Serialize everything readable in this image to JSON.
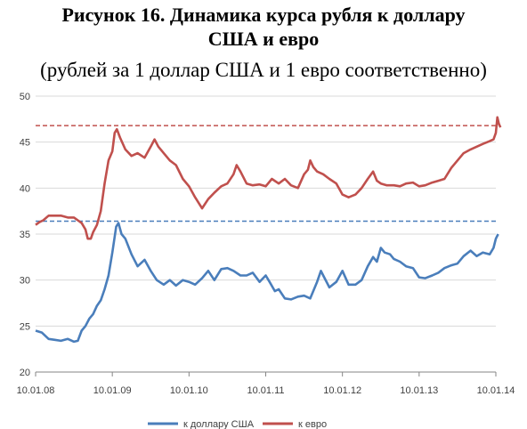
{
  "chart_data": {
    "type": "line",
    "title_line1": "Рисунок 16. Динамика курса рубля к доллару",
    "title_line2": "США и евро",
    "subtitle": "(рублей за 1 доллар США и 1 евро соответственно)",
    "xlabel": "",
    "ylabel": "",
    "ylim": [
      20,
      50
    ],
    "y_ticks": [
      "20",
      "25",
      "30",
      "35",
      "40",
      "45",
      "50"
    ],
    "x_ticks": [
      "10.01.08",
      "10.01.09",
      "10.01.10",
      "10.01.11",
      "10.01.12",
      "10.01.13",
      "10.01.14"
    ],
    "x_unit": "years since 10.01.08",
    "legend_position": "bottom",
    "grid": "horizontal",
    "series": [
      {
        "name": "к доллару США",
        "color": "#4a7ebb",
        "points": [
          [
            0.0,
            24.5
          ],
          [
            0.08,
            24.3
          ],
          [
            0.17,
            23.6
          ],
          [
            0.25,
            23.5
          ],
          [
            0.33,
            23.4
          ],
          [
            0.42,
            23.6
          ],
          [
            0.5,
            23.3
          ],
          [
            0.55,
            23.4
          ],
          [
            0.6,
            24.5
          ],
          [
            0.65,
            25.0
          ],
          [
            0.7,
            25.8
          ],
          [
            0.75,
            26.3
          ],
          [
            0.8,
            27.2
          ],
          [
            0.85,
            27.8
          ],
          [
            0.9,
            29.0
          ],
          [
            0.95,
            30.5
          ],
          [
            1.0,
            33.0
          ],
          [
            1.05,
            35.8
          ],
          [
            1.08,
            36.2
          ],
          [
            1.12,
            35.0
          ],
          [
            1.17,
            34.5
          ],
          [
            1.25,
            32.8
          ],
          [
            1.33,
            31.5
          ],
          [
            1.42,
            32.2
          ],
          [
            1.5,
            31.0
          ],
          [
            1.58,
            30.0
          ],
          [
            1.67,
            29.5
          ],
          [
            1.75,
            30.0
          ],
          [
            1.83,
            29.4
          ],
          [
            1.92,
            30.0
          ],
          [
            2.0,
            29.8
          ],
          [
            2.08,
            29.5
          ],
          [
            2.17,
            30.2
          ],
          [
            2.25,
            31.0
          ],
          [
            2.33,
            30.0
          ],
          [
            2.42,
            31.2
          ],
          [
            2.5,
            31.3
          ],
          [
            2.58,
            31.0
          ],
          [
            2.67,
            30.5
          ],
          [
            2.75,
            30.5
          ],
          [
            2.83,
            30.8
          ],
          [
            2.92,
            29.8
          ],
          [
            3.0,
            30.5
          ],
          [
            3.05,
            29.8
          ],
          [
            3.12,
            28.8
          ],
          [
            3.17,
            29.0
          ],
          [
            3.25,
            28.0
          ],
          [
            3.33,
            27.9
          ],
          [
            3.42,
            28.2
          ],
          [
            3.5,
            28.3
          ],
          [
            3.58,
            28.0
          ],
          [
            3.67,
            29.8
          ],
          [
            3.72,
            31.0
          ],
          [
            3.75,
            30.5
          ],
          [
            3.83,
            29.2
          ],
          [
            3.92,
            29.8
          ],
          [
            4.0,
            31.0
          ],
          [
            4.08,
            29.5
          ],
          [
            4.17,
            29.5
          ],
          [
            4.25,
            30.0
          ],
          [
            4.33,
            31.5
          ],
          [
            4.4,
            32.5
          ],
          [
            4.45,
            32.0
          ],
          [
            4.5,
            33.5
          ],
          [
            4.55,
            33.0
          ],
          [
            4.62,
            32.8
          ],
          [
            4.67,
            32.3
          ],
          [
            4.75,
            32.0
          ],
          [
            4.83,
            31.5
          ],
          [
            4.92,
            31.3
          ],
          [
            5.0,
            30.3
          ],
          [
            5.08,
            30.2
          ],
          [
            5.17,
            30.5
          ],
          [
            5.25,
            30.8
          ],
          [
            5.33,
            31.3
          ],
          [
            5.42,
            31.6
          ],
          [
            5.5,
            31.8
          ],
          [
            5.58,
            32.6
          ],
          [
            5.67,
            33.2
          ],
          [
            5.75,
            32.6
          ],
          [
            5.83,
            33.0
          ],
          [
            5.92,
            32.8
          ],
          [
            5.97,
            33.5
          ],
          [
            6.0,
            34.5
          ],
          [
            6.03,
            35.0
          ]
        ],
        "reference_level": 36.4
      },
      {
        "name": "к евро",
        "color": "#c0504d",
        "points": [
          [
            0.0,
            36.0
          ],
          [
            0.05,
            36.3
          ],
          [
            0.1,
            36.5
          ],
          [
            0.17,
            37.0
          ],
          [
            0.25,
            37.0
          ],
          [
            0.33,
            37.0
          ],
          [
            0.42,
            36.8
          ],
          [
            0.5,
            36.8
          ],
          [
            0.55,
            36.5
          ],
          [
            0.6,
            36.2
          ],
          [
            0.65,
            35.5
          ],
          [
            0.68,
            34.5
          ],
          [
            0.72,
            34.5
          ],
          [
            0.75,
            35.2
          ],
          [
            0.8,
            36.0
          ],
          [
            0.85,
            37.5
          ],
          [
            0.9,
            40.5
          ],
          [
            0.95,
            43.0
          ],
          [
            1.0,
            44.0
          ],
          [
            1.03,
            46.0
          ],
          [
            1.06,
            46.4
          ],
          [
            1.1,
            45.5
          ],
          [
            1.17,
            44.2
          ],
          [
            1.25,
            43.5
          ],
          [
            1.33,
            43.8
          ],
          [
            1.42,
            43.3
          ],
          [
            1.5,
            44.5
          ],
          [
            1.55,
            45.3
          ],
          [
            1.6,
            44.5
          ],
          [
            1.67,
            43.8
          ],
          [
            1.75,
            43.0
          ],
          [
            1.83,
            42.5
          ],
          [
            1.92,
            41.0
          ],
          [
            2.0,
            40.2
          ],
          [
            2.08,
            39.0
          ],
          [
            2.17,
            37.8
          ],
          [
            2.25,
            38.8
          ],
          [
            2.33,
            39.5
          ],
          [
            2.42,
            40.2
          ],
          [
            2.5,
            40.5
          ],
          [
            2.58,
            41.5
          ],
          [
            2.62,
            42.5
          ],
          [
            2.67,
            41.8
          ],
          [
            2.75,
            40.5
          ],
          [
            2.83,
            40.3
          ],
          [
            2.92,
            40.4
          ],
          [
            3.0,
            40.2
          ],
          [
            3.08,
            41.0
          ],
          [
            3.17,
            40.5
          ],
          [
            3.25,
            41.0
          ],
          [
            3.33,
            40.3
          ],
          [
            3.42,
            40.0
          ],
          [
            3.5,
            41.5
          ],
          [
            3.55,
            42.0
          ],
          [
            3.58,
            43.0
          ],
          [
            3.62,
            42.3
          ],
          [
            3.67,
            41.8
          ],
          [
            3.75,
            41.5
          ],
          [
            3.83,
            41.0
          ],
          [
            3.92,
            40.5
          ],
          [
            4.0,
            39.3
          ],
          [
            4.08,
            39.0
          ],
          [
            4.17,
            39.3
          ],
          [
            4.25,
            40.0
          ],
          [
            4.33,
            41.0
          ],
          [
            4.4,
            41.8
          ],
          [
            4.45,
            40.8
          ],
          [
            4.5,
            40.5
          ],
          [
            4.58,
            40.3
          ],
          [
            4.67,
            40.3
          ],
          [
            4.75,
            40.2
          ],
          [
            4.83,
            40.5
          ],
          [
            4.92,
            40.6
          ],
          [
            5.0,
            40.2
          ],
          [
            5.08,
            40.3
          ],
          [
            5.17,
            40.6
          ],
          [
            5.25,
            40.8
          ],
          [
            5.33,
            41.0
          ],
          [
            5.42,
            42.2
          ],
          [
            5.5,
            43.0
          ],
          [
            5.58,
            43.8
          ],
          [
            5.67,
            44.2
          ],
          [
            5.75,
            44.5
          ],
          [
            5.83,
            44.8
          ],
          [
            5.92,
            45.1
          ],
          [
            5.97,
            45.3
          ],
          [
            6.0,
            46.0
          ],
          [
            6.02,
            47.7
          ],
          [
            6.04,
            47.0
          ],
          [
            6.06,
            46.6
          ]
        ],
        "reference_level": 46.8
      }
    ]
  }
}
